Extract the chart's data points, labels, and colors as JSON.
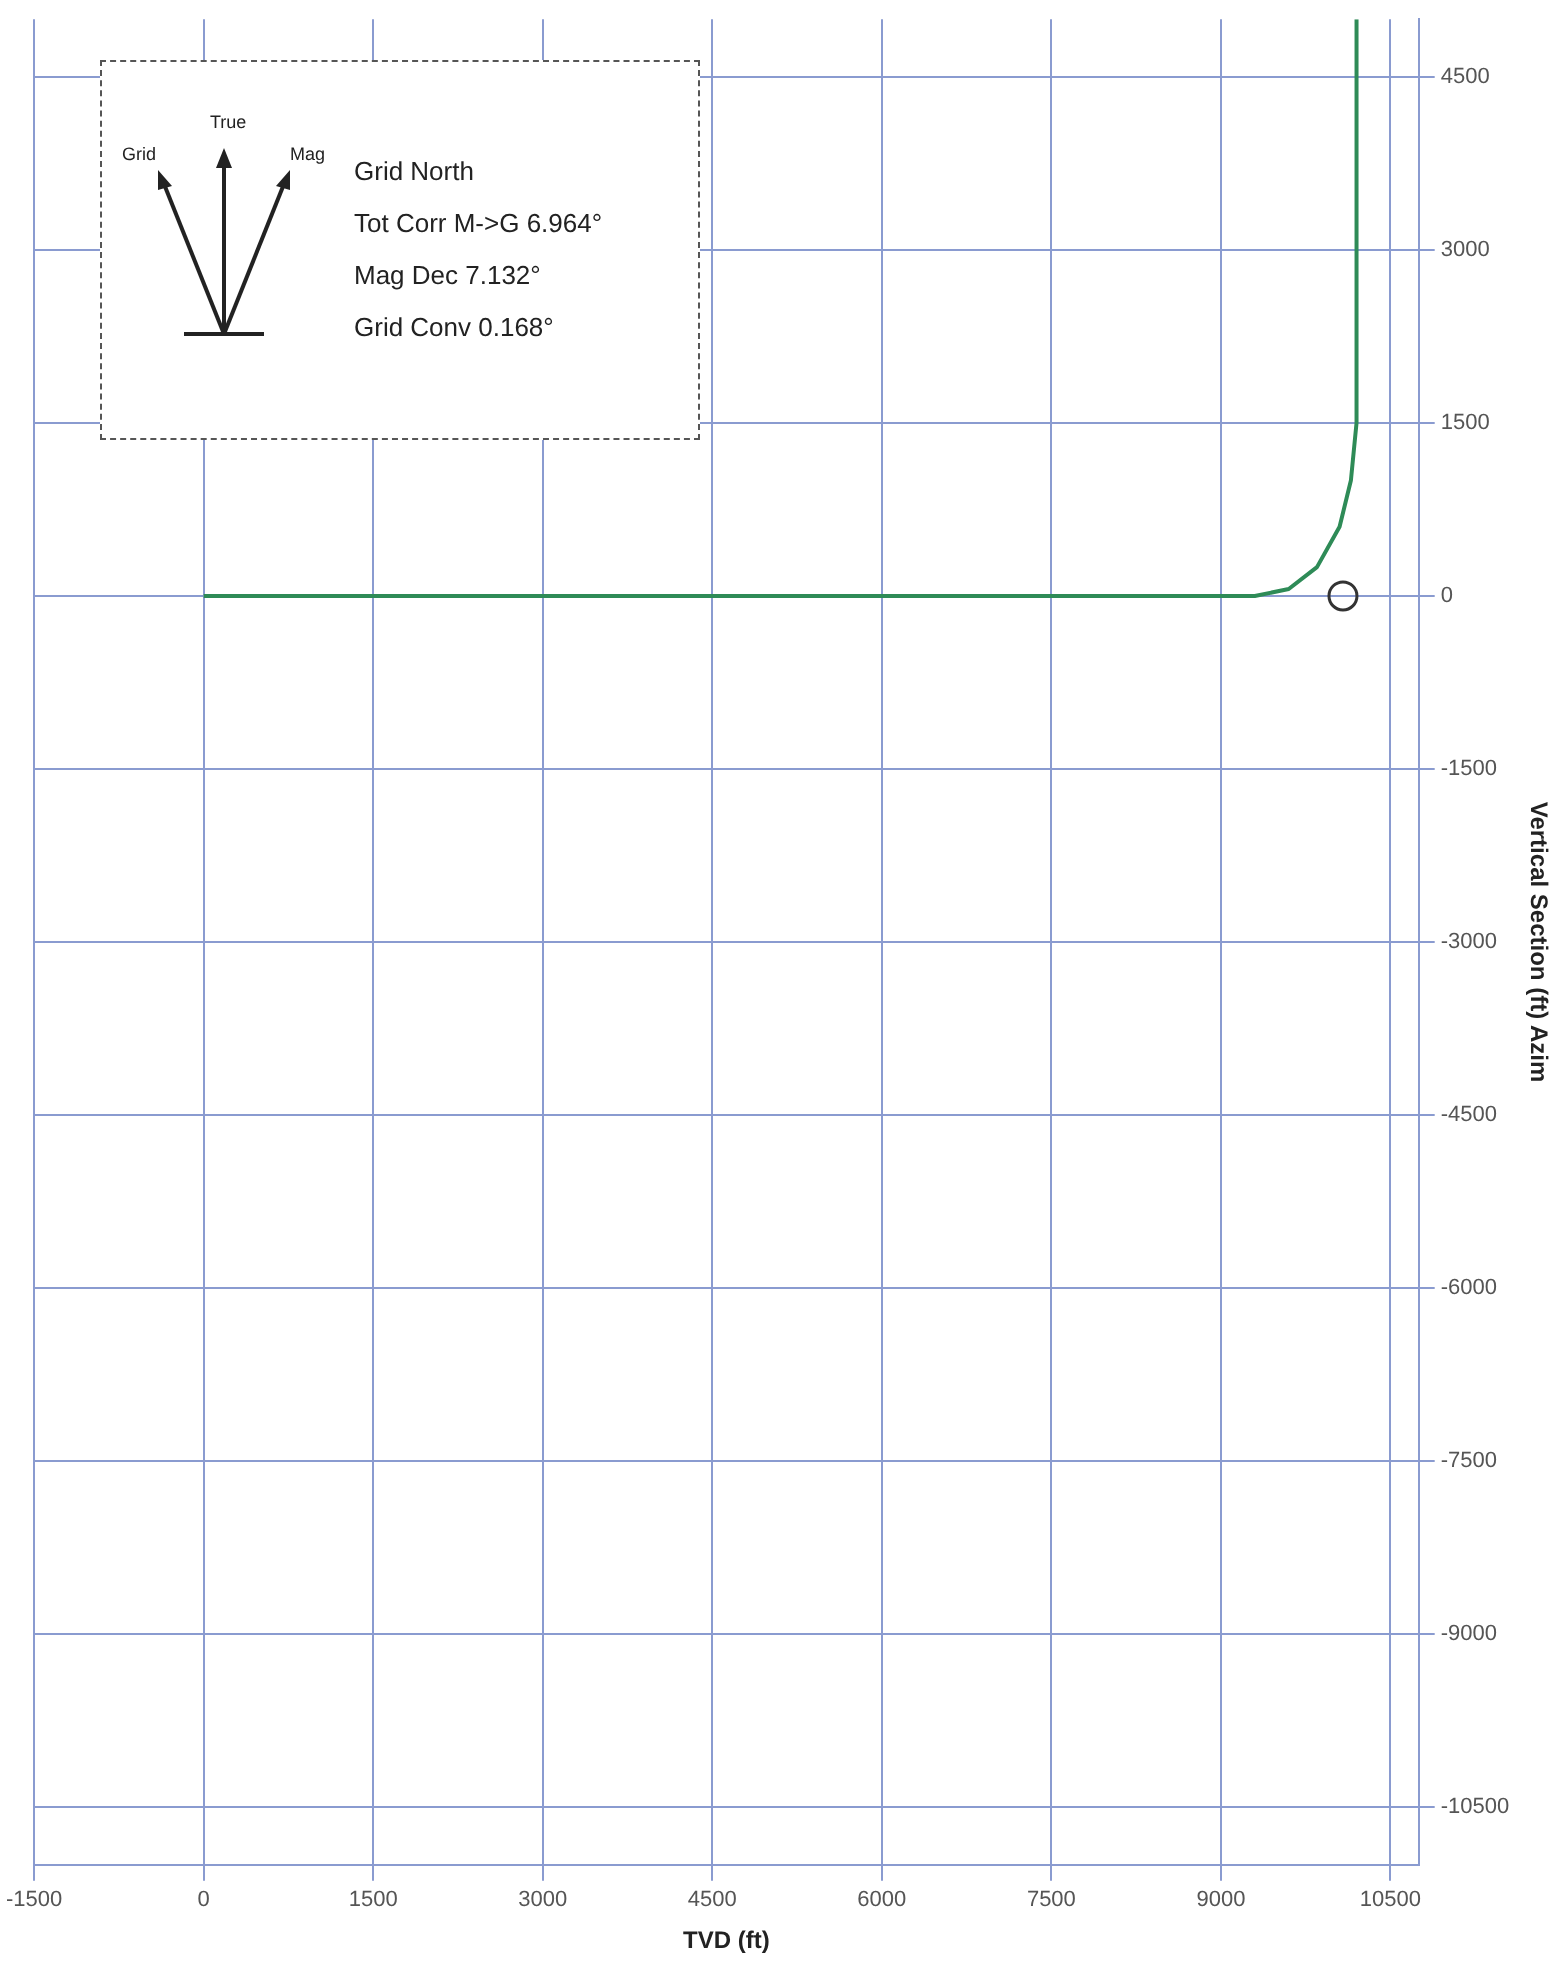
{
  "chart_data": {
    "type": "line",
    "xlabel": "TVD (ft)",
    "ylabel": "Vertical Section (ft) Azim",
    "xlim": [
      -1500,
      10750
    ],
    "xticks": [
      -1500,
      0,
      1500,
      3000,
      4500,
      6000,
      7500,
      9000,
      10500
    ],
    "ylim": [
      -11000,
      5000
    ],
    "yticks": [
      -10500,
      -9000,
      -7500,
      -6000,
      -4500,
      -3000,
      -1500,
      0,
      1500,
      3000,
      4500
    ],
    "grid": true,
    "legend": false,
    "series": [
      {
        "type": "line",
        "color": "#2e8b57",
        "x": [
          0,
          9300,
          9600,
          9850,
          10050,
          10150,
          10200,
          10200
        ],
        "values": [
          0,
          0,
          60,
          250,
          600,
          1000,
          1500,
          5000
        ]
      },
      {
        "type": "scatter",
        "color": "#333333",
        "x": [
          10080
        ],
        "values": [
          0
        ]
      }
    ],
    "annotations": [
      "Grid North",
      "Tot Corr M->G 6.964°",
      "Mag Dec 7.132°",
      "Grid Conv 0.168°",
      "True",
      "Mag",
      "Grid"
    ]
  }
}
